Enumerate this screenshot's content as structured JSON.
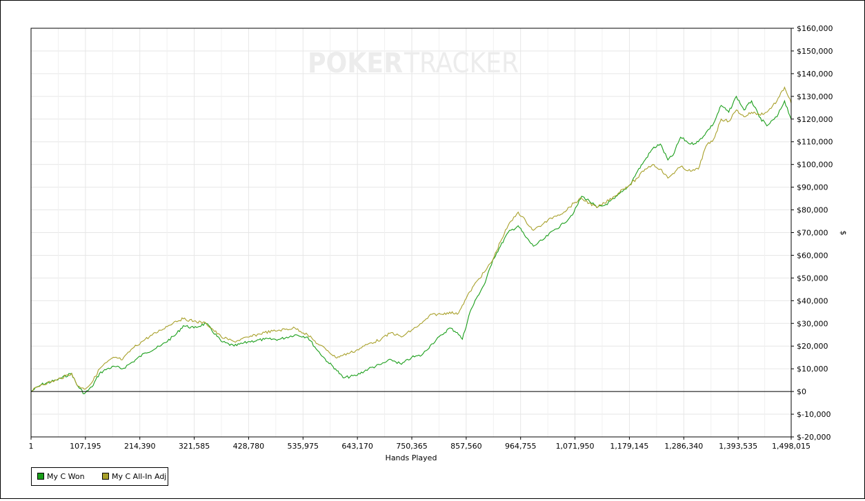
{
  "watermark": {
    "left": "POKER",
    "right": "TRACKER"
  },
  "chart_data": {
    "type": "line",
    "xlabel": "Hands Played",
    "ylabel": "$",
    "xlim": [
      1,
      1498015
    ],
    "ylim": [
      -20000,
      160000
    ],
    "x_ticks": [
      {
        "v": 1,
        "label": "1"
      },
      {
        "v": 107195,
        "label": "107,195"
      },
      {
        "v": 214390,
        "label": "214,390"
      },
      {
        "v": 321585,
        "label": "321,585"
      },
      {
        "v": 428780,
        "label": "428,780"
      },
      {
        "v": 535975,
        "label": "535,975"
      },
      {
        "v": 643170,
        "label": "643,170"
      },
      {
        "v": 750365,
        "label": "750,365"
      },
      {
        "v": 857560,
        "label": "857,560"
      },
      {
        "v": 964755,
        "label": "964,755"
      },
      {
        "v": 1071950,
        "label": "1,071,950"
      },
      {
        "v": 1179145,
        "label": "1,179,145"
      },
      {
        "v": 1286340,
        "label": "1,286,340"
      },
      {
        "v": 1393535,
        "label": "1,393,535"
      },
      {
        "v": 1498015,
        "label": "1,498,015"
      }
    ],
    "y_ticks": [
      {
        "v": 160000,
        "label": "$160,000"
      },
      {
        "v": 150000,
        "label": "$150,000"
      },
      {
        "v": 140000,
        "label": "$140,000"
      },
      {
        "v": 130000,
        "label": "$130,000"
      },
      {
        "v": 120000,
        "label": "$120,000"
      },
      {
        "v": 110000,
        "label": "$110,000"
      },
      {
        "v": 100000,
        "label": "$100,000"
      },
      {
        "v": 90000,
        "label": "$90,000"
      },
      {
        "v": 80000,
        "label": "$80,000"
      },
      {
        "v": 70000,
        "label": "$70,000"
      },
      {
        "v": 60000,
        "label": "$60,000"
      },
      {
        "v": 50000,
        "label": "$50,000"
      },
      {
        "v": 40000,
        "label": "$40,000"
      },
      {
        "v": 30000,
        "label": "$30,000"
      },
      {
        "v": 20000,
        "label": "$20,000"
      },
      {
        "v": 10000,
        "label": "$10,000"
      },
      {
        "v": 0,
        "label": "$0"
      },
      {
        "v": -10000,
        "label": "$-10,000"
      },
      {
        "v": -20000,
        "label": "$-20,000"
      }
    ],
    "grid": true,
    "legend_placement": "bottom-left",
    "series": [
      {
        "name": "My C Won",
        "color": "#1a9e1a",
        "x": [
          1,
          20000,
          50000,
          80000,
          90000,
          105000,
          120000,
          135000,
          150000,
          165000,
          180000,
          200000,
          225000,
          255000,
          285000,
          300000,
          321000,
          345000,
          375000,
          400000,
          430000,
          460000,
          490000,
          520000,
          545000,
          565000,
          585000,
          600000,
          615000,
          640000,
          665000,
          690000,
          710000,
          730000,
          750000,
          770000,
          790000,
          810000,
          825000,
          840000,
          850000,
          865000,
          880000,
          895000,
          910000,
          925000,
          940000,
          960000,
          975000,
          990000,
          1010000,
          1030000,
          1050000,
          1070000,
          1085000,
          1100000,
          1115000,
          1130000,
          1150000,
          1165000,
          1180000,
          1195000,
          1210000,
          1225000,
          1240000,
          1255000,
          1265000,
          1280000,
          1300000,
          1315000,
          1330000,
          1345000,
          1360000,
          1375000,
          1390000,
          1405000,
          1420000,
          1435000,
          1450000,
          1470000,
          1485000,
          1498015
        ],
        "y": [
          0,
          3000,
          5000,
          8000,
          3000,
          -1000,
          2000,
          8000,
          10000,
          11000,
          10000,
          13000,
          17000,
          20000,
          25000,
          29000,
          28000,
          30000,
          22000,
          20000,
          22000,
          23000,
          23000,
          25000,
          24000,
          18000,
          13000,
          10000,
          6000,
          7000,
          10000,
          12000,
          14000,
          12000,
          15000,
          16000,
          21000,
          25000,
          28000,
          26000,
          23000,
          35000,
          42000,
          48000,
          58000,
          64000,
          70000,
          73000,
          68000,
          64000,
          67000,
          71000,
          74000,
          79000,
          86000,
          84000,
          81000,
          82000,
          85000,
          88000,
          91000,
          97000,
          102000,
          107000,
          109000,
          102000,
          104000,
          112000,
          109000,
          110000,
          114000,
          118000,
          126000,
          123000,
          130000,
          124000,
          128000,
          121000,
          117000,
          121000,
          128000,
          120000
        ]
      },
      {
        "name": "My C All-In Adj",
        "color": "#a8a02a",
        "x": [
          1,
          20000,
          50000,
          80000,
          90000,
          105000,
          120000,
          135000,
          150000,
          165000,
          180000,
          200000,
          225000,
          255000,
          285000,
          300000,
          321000,
          345000,
          375000,
          400000,
          430000,
          460000,
          490000,
          520000,
          545000,
          565000,
          585000,
          600000,
          615000,
          640000,
          665000,
          690000,
          710000,
          730000,
          750000,
          770000,
          790000,
          810000,
          825000,
          840000,
          850000,
          865000,
          880000,
          895000,
          910000,
          925000,
          940000,
          960000,
          975000,
          990000,
          1010000,
          1030000,
          1050000,
          1070000,
          1085000,
          1100000,
          1115000,
          1130000,
          1150000,
          1165000,
          1180000,
          1195000,
          1210000,
          1225000,
          1240000,
          1255000,
          1265000,
          1280000,
          1300000,
          1315000,
          1330000,
          1345000,
          1360000,
          1375000,
          1390000,
          1405000,
          1420000,
          1435000,
          1450000,
          1470000,
          1485000,
          1498015
        ],
        "y": [
          0,
          3000,
          5000,
          8000,
          3000,
          1000,
          4000,
          10000,
          13000,
          15000,
          14000,
          19000,
          23000,
          27000,
          31000,
          32000,
          31000,
          30000,
          24000,
          22000,
          24000,
          26000,
          27000,
          28000,
          25000,
          21000,
          18000,
          15000,
          16000,
          18000,
          21000,
          23000,
          26000,
          24000,
          27000,
          30000,
          34000,
          34000,
          35000,
          34000,
          38000,
          44000,
          49000,
          53000,
          58000,
          66000,
          73000,
          79000,
          75000,
          71000,
          74000,
          77000,
          79000,
          83000,
          85000,
          83000,
          81000,
          83000,
          86000,
          89000,
          91000,
          94000,
          98000,
          100000,
          98000,
          94000,
          96000,
          99000,
          97000,
          98000,
          108000,
          111000,
          120000,
          119000,
          124000,
          121000,
          123000,
          122000,
          123000,
          128000,
          134000,
          127000
        ]
      }
    ]
  }
}
